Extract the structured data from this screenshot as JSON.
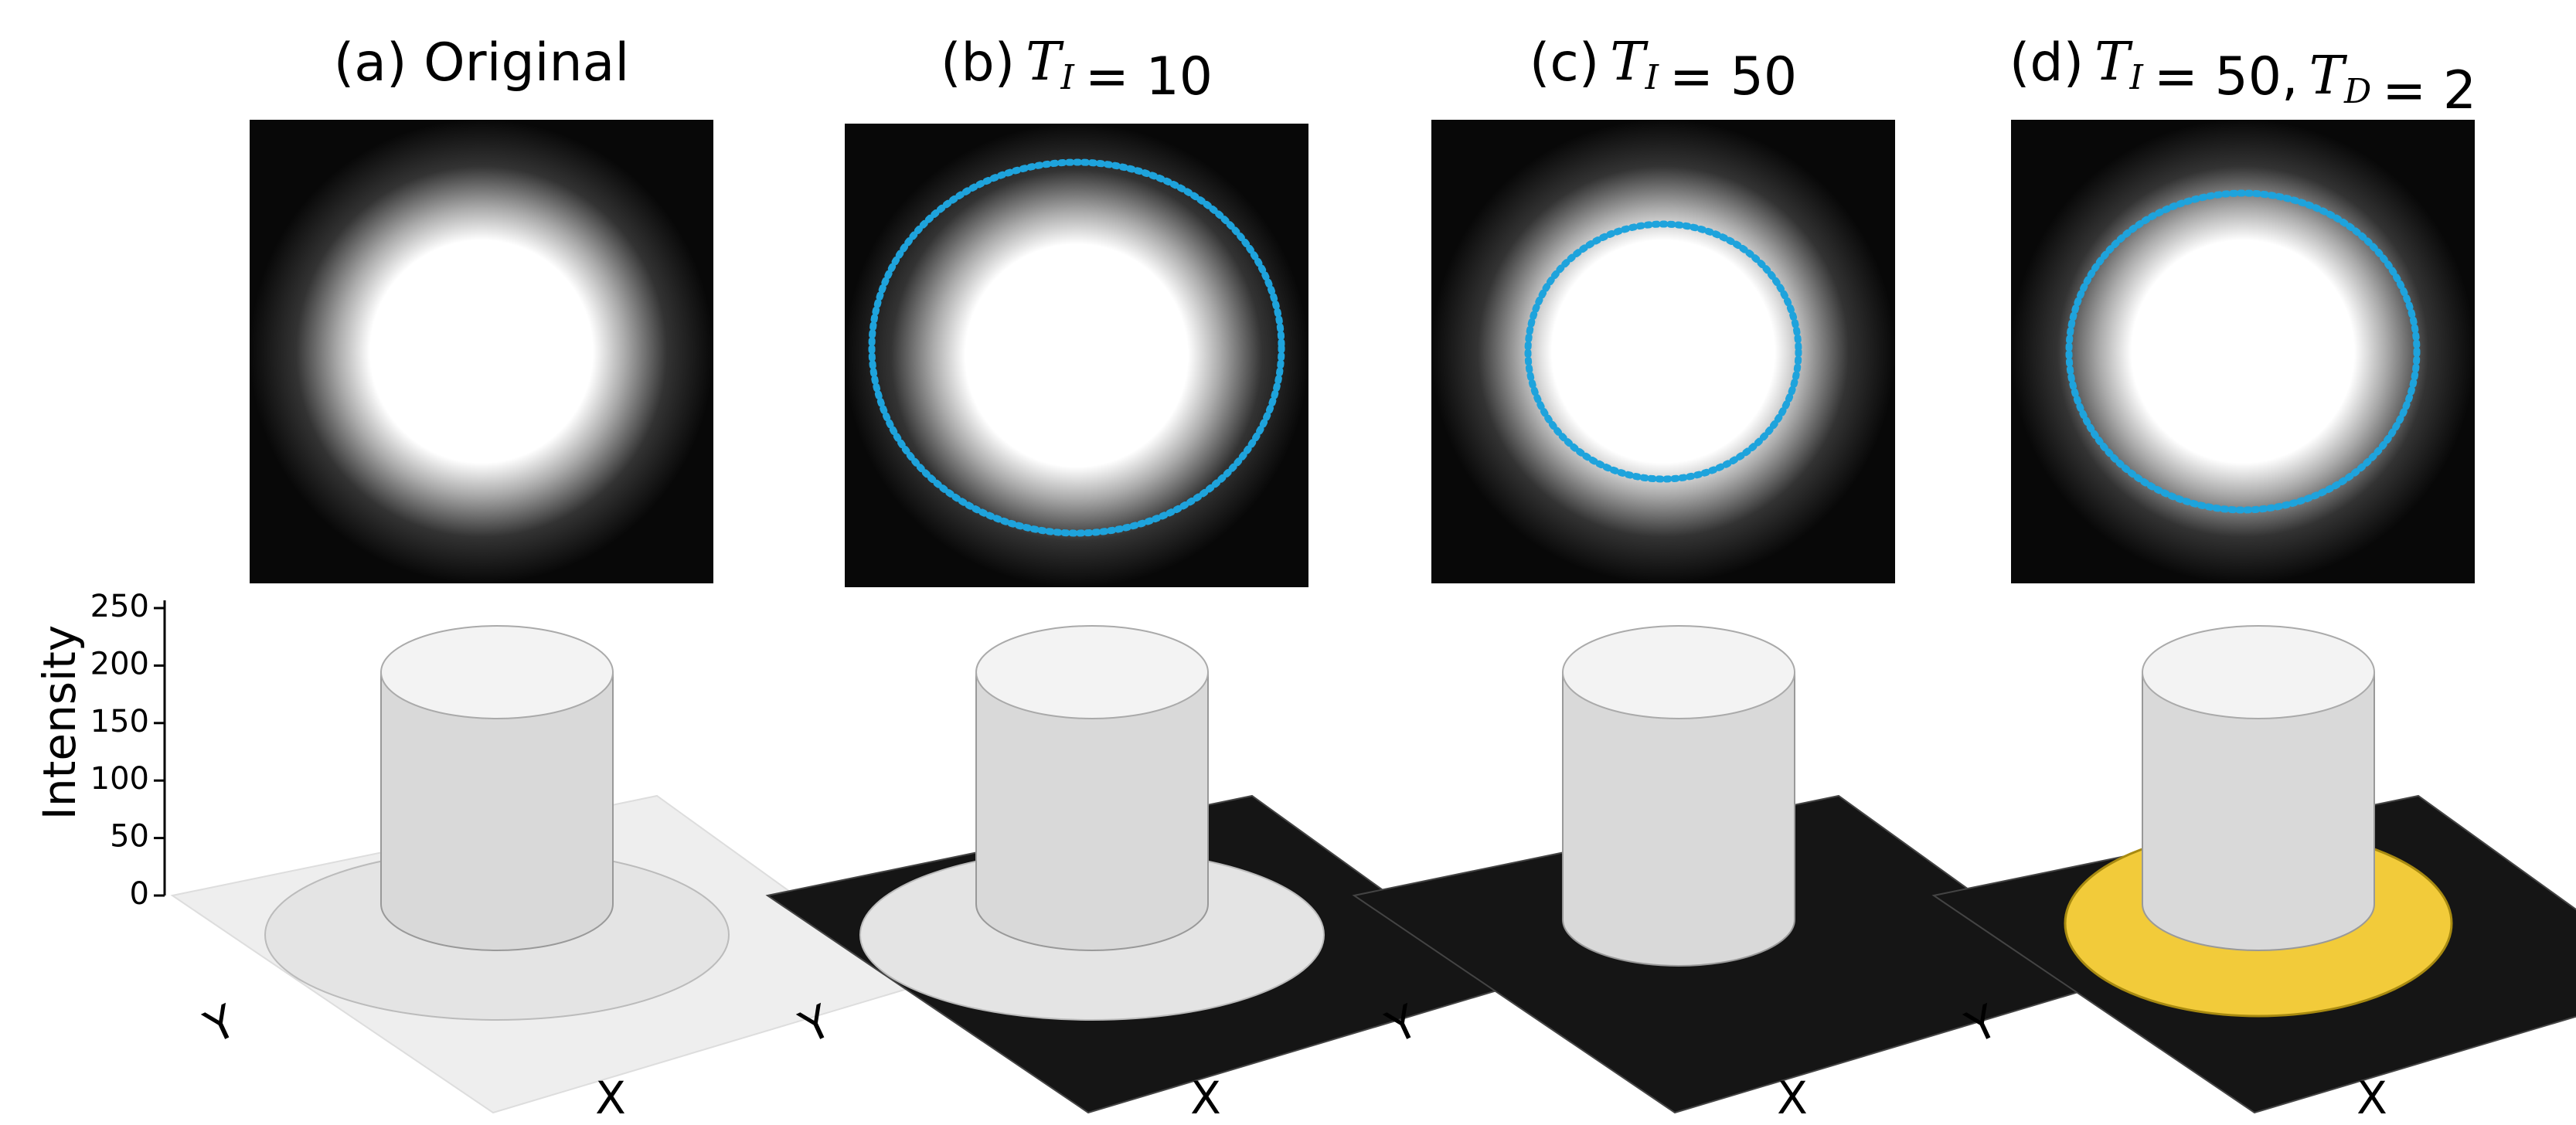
{
  "panels": [
    {
      "title": [
        "(a) Original"
      ],
      "axis_y": "Y",
      "axis_x": "X"
    },
    {
      "title": [
        "(b)",
        {
          "sym": "T",
          "sub": "I"
        },
        "= 10"
      ],
      "axis_y": "Y",
      "axis_x": "X"
    },
    {
      "title": [
        "(c)",
        {
          "sym": "T",
          "sub": "I"
        },
        "= 50"
      ],
      "axis_y": "Y",
      "axis_x": "X"
    },
    {
      "title": [
        "(d)",
        {
          "sym": "T",
          "sub": "I"
        },
        "= 50,",
        {
          "sym": "T",
          "sub": "D"
        },
        "= 2"
      ],
      "axis_y": "Y",
      "axis_x": "X"
    }
  ],
  "intensity_axis": {
    "label": "Intensity",
    "ylim": [
      0,
      250
    ],
    "yticks": [
      0,
      50,
      100,
      150,
      200,
      250
    ]
  }
}
